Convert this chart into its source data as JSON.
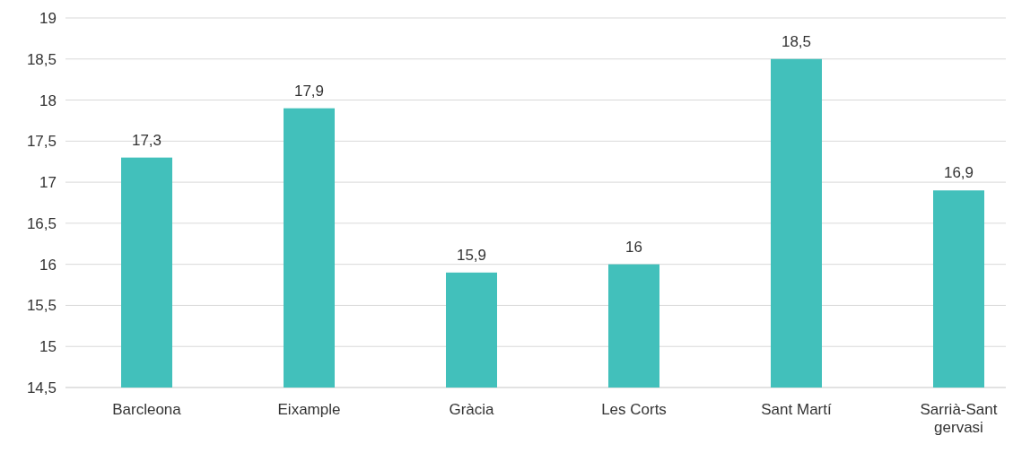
{
  "chart_data": {
    "type": "bar",
    "categories": [
      "Barcleona",
      "Eixample",
      "Gràcia",
      "Les Corts",
      "Sant Martí",
      "Sarrià-Sant gervasi"
    ],
    "values": [
      17.3,
      17.9,
      15.9,
      16,
      18.5,
      16.9
    ],
    "value_labels": [
      "17,3",
      "17,9",
      "15,9",
      "16",
      "18,5",
      "16,9"
    ],
    "color": "#42c0bb",
    "ylim": [
      14.5,
      19
    ],
    "yticks": [
      {
        "value": 14.5,
        "label": "14,5"
      },
      15,
      {
        "value": 15.5,
        "label": "15,5"
      },
      16,
      {
        "value": 16.5,
        "label": "16,5"
      },
      17,
      {
        "value": 17.5,
        "label": "17,5"
      },
      18,
      {
        "value": 18.5,
        "label": "18,5"
      },
      19
    ],
    "grid": "y"
  }
}
